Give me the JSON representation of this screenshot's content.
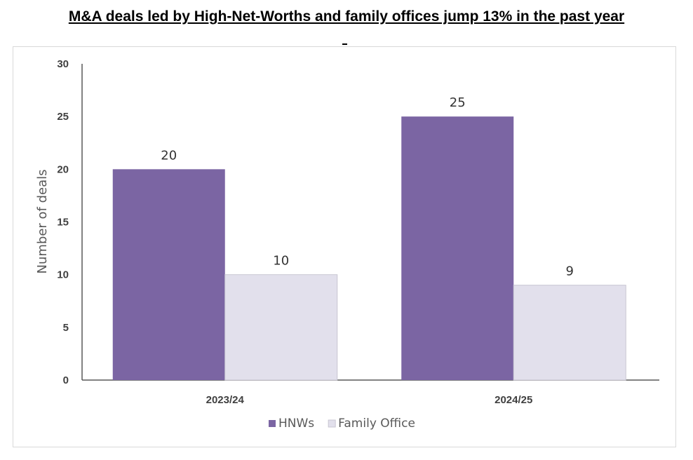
{
  "chart_data": {
    "type": "bar",
    "title": "M&A deals led by High-Net-Worths and family offices jump 13% in the past year",
    "xlabel": "",
    "ylabel": "Number of deals",
    "categories": [
      "2023/24",
      "2024/25"
    ],
    "series": [
      {
        "name": "HNWs",
        "values": [
          20,
          25
        ],
        "color": "#7b65a3"
      },
      {
        "name": "Family Office",
        "values": [
          10,
          9
        ],
        "color": "#e2e0ec"
      }
    ],
    "ylim": [
      0,
      30
    ],
    "yticks": [
      0,
      5,
      10,
      15,
      20,
      25,
      30
    ],
    "ytick_labels": [
      "0",
      "5",
      "10",
      "15",
      "20",
      "25",
      "30"
    ],
    "grid": false,
    "legend_position": "bottom",
    "axis_color": "#595959",
    "bar_edge_color": "#c8c6d2"
  }
}
